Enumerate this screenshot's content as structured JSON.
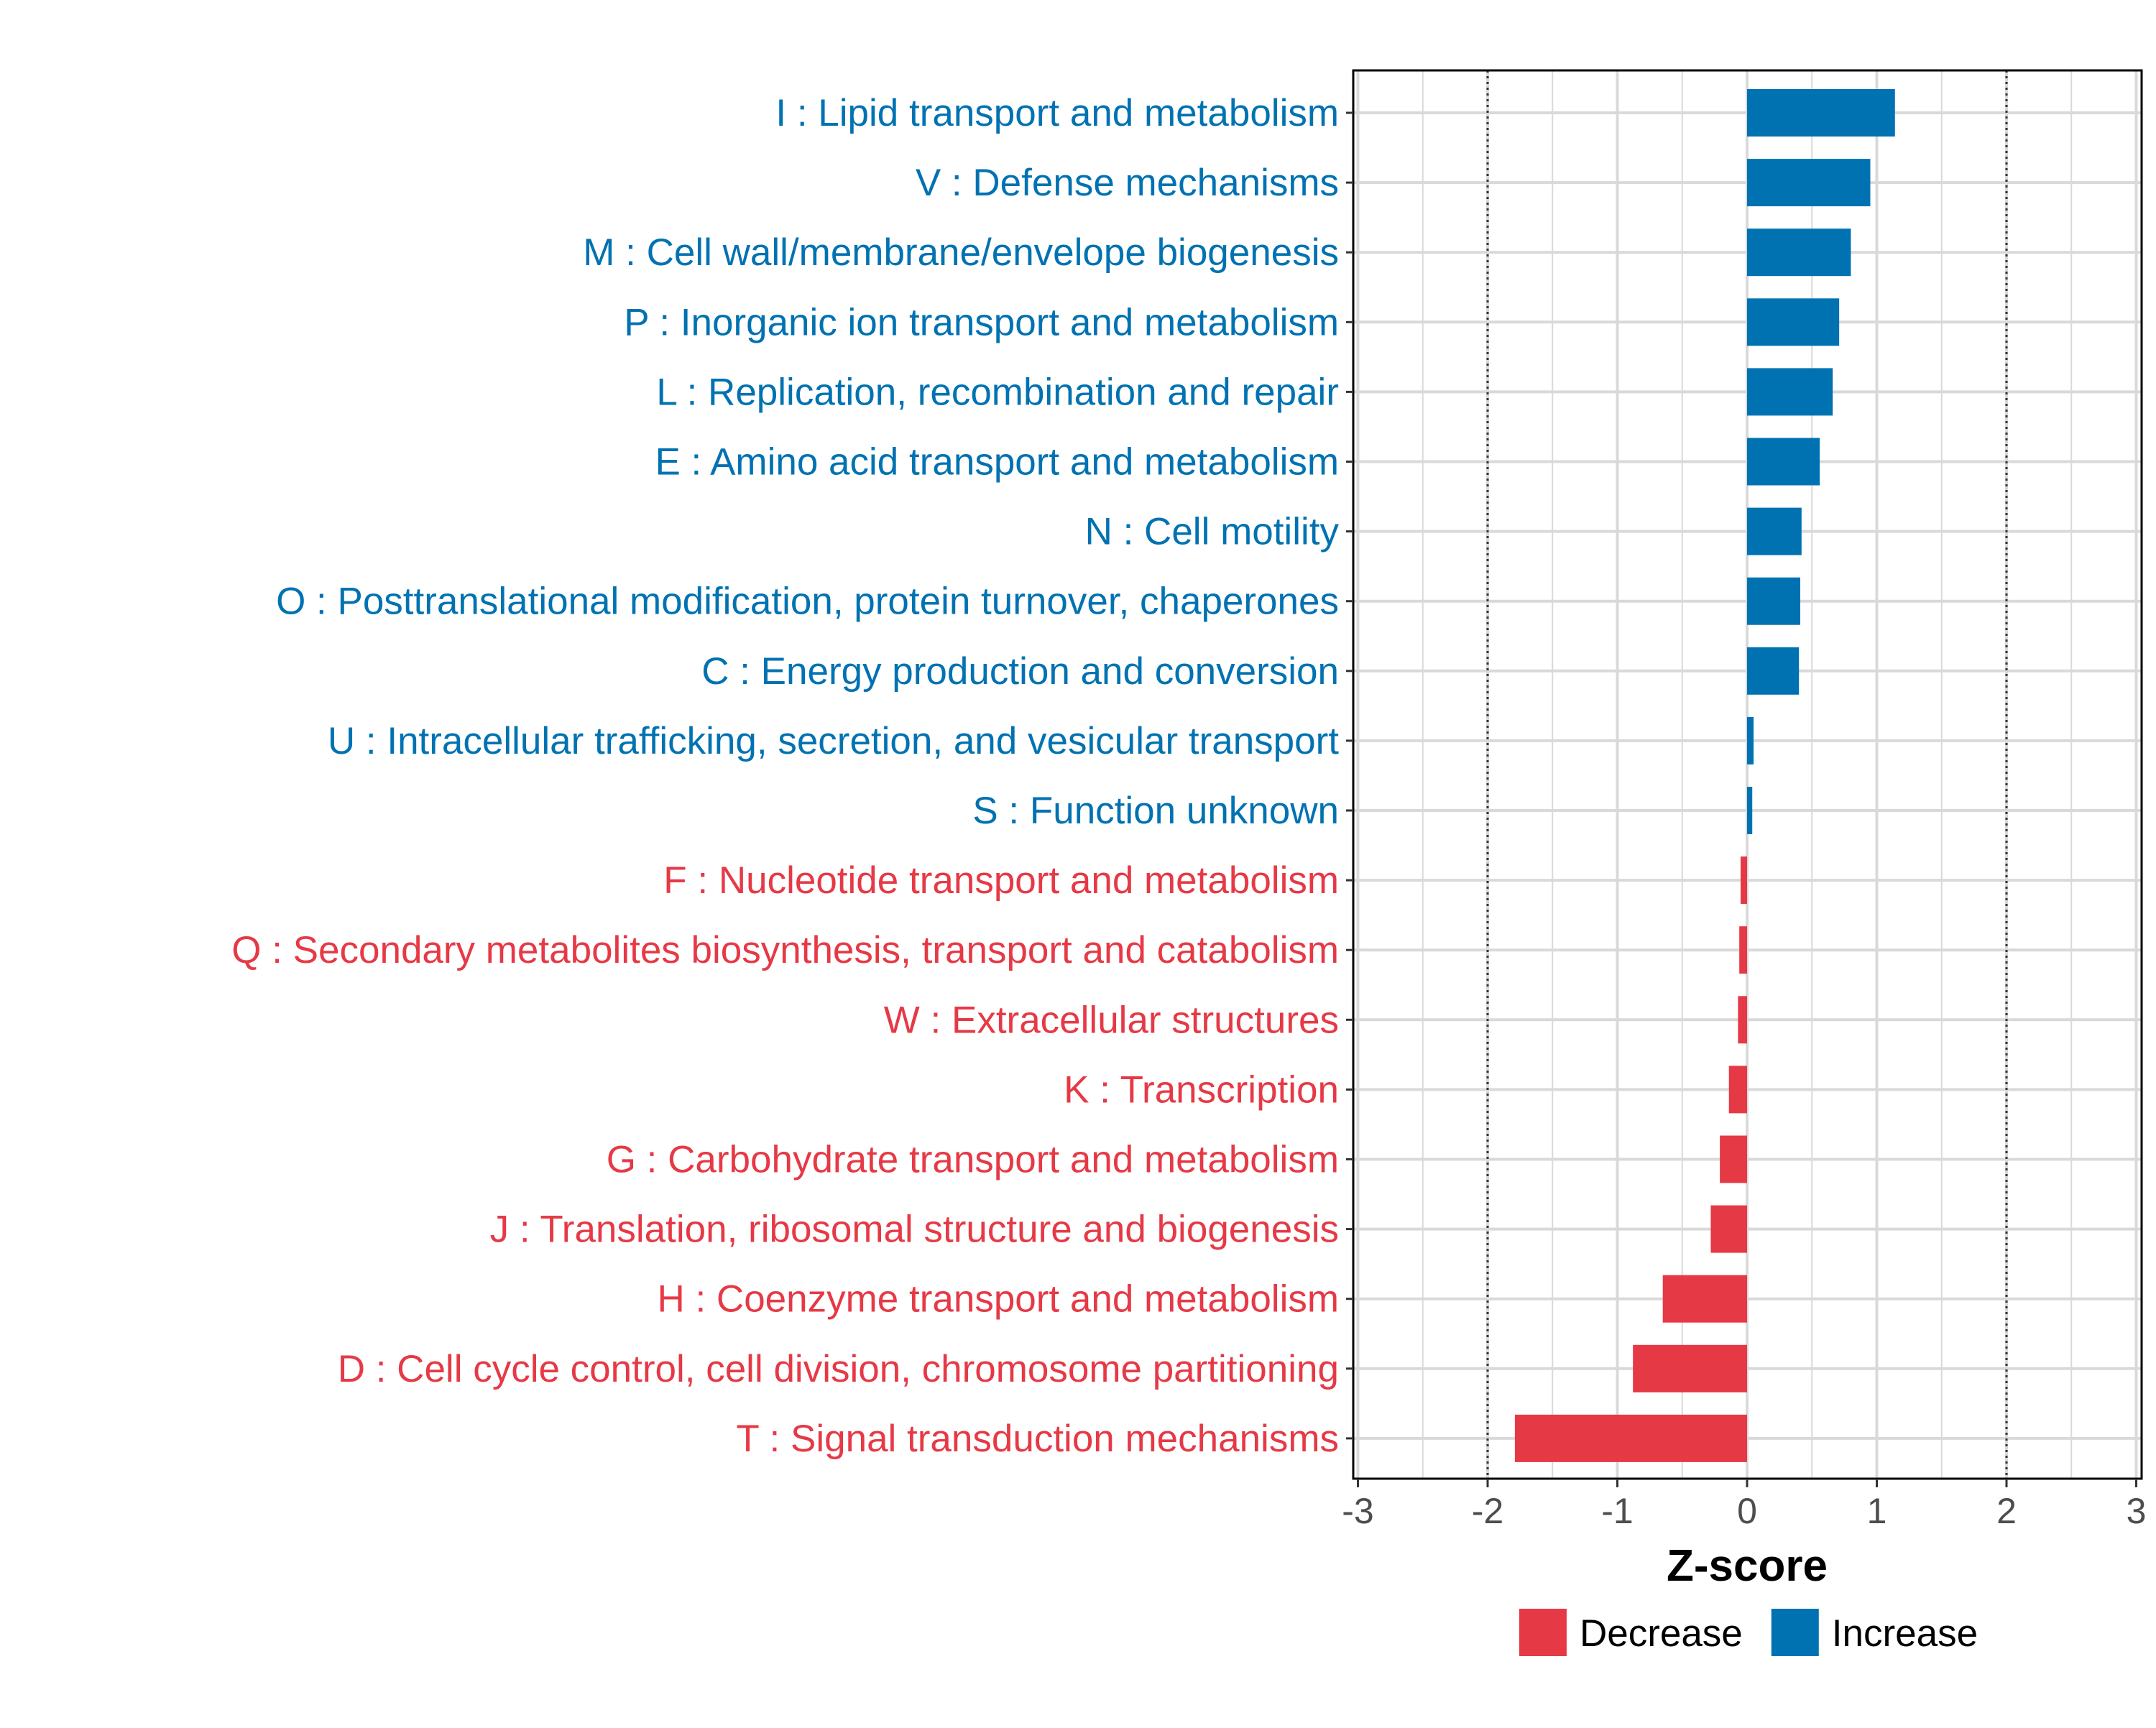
{
  "chart_data": {
    "type": "bar",
    "orientation": "horizontal",
    "xlabel": "Z-score",
    "xlim": [
      -3,
      3
    ],
    "x_ticks": [
      -3,
      -2,
      -1,
      0,
      1,
      2,
      3
    ],
    "x_tick_labels": [
      "-3",
      "-2",
      "-1",
      "0",
      "1",
      "2",
      "3"
    ],
    "threshold_lines": [
      -2,
      2
    ],
    "grid": true,
    "legend_position": "bottom",
    "colors": {
      "Increase": "#0072B2",
      "Decrease": "#E63946"
    },
    "legend": [
      {
        "name": "Decrease",
        "color": "#E63946"
      },
      {
        "name": "Increase",
        "color": "#0072B2"
      }
    ],
    "categories": [
      {
        "label": "I : Lipid transport and metabolism",
        "value": 1.14,
        "direction": "Increase"
      },
      {
        "label": "V : Defense mechanisms",
        "value": 0.95,
        "direction": "Increase"
      },
      {
        "label": "M : Cell wall/membrane/envelope biogenesis",
        "value": 0.8,
        "direction": "Increase"
      },
      {
        "label": "P : Inorganic ion transport and metabolism",
        "value": 0.71,
        "direction": "Increase"
      },
      {
        "label": "L : Replication, recombination and repair",
        "value": 0.66,
        "direction": "Increase"
      },
      {
        "label": "E : Amino acid transport and metabolism",
        "value": 0.56,
        "direction": "Increase"
      },
      {
        "label": "N : Cell motility",
        "value": 0.42,
        "direction": "Increase"
      },
      {
        "label": "O : Posttranslational modification, protein turnover, chaperones",
        "value": 0.41,
        "direction": "Increase"
      },
      {
        "label": "C : Energy production and conversion",
        "value": 0.4,
        "direction": "Increase"
      },
      {
        "label": "U : Intracellular trafficking, secretion, and vesicular transport",
        "value": 0.05,
        "direction": "Increase"
      },
      {
        "label": "S : Function unknown",
        "value": 0.04,
        "direction": "Increase"
      },
      {
        "label": "F : Nucleotide transport and metabolism",
        "value": -0.05,
        "direction": "Decrease"
      },
      {
        "label": "Q : Secondary metabolites biosynthesis, transport and catabolism",
        "value": -0.06,
        "direction": "Decrease"
      },
      {
        "label": "W : Extracellular structures",
        "value": -0.07,
        "direction": "Decrease"
      },
      {
        "label": "K : Transcription",
        "value": -0.14,
        "direction": "Decrease"
      },
      {
        "label": "G : Carbohydrate transport and metabolism",
        "value": -0.21,
        "direction": "Decrease"
      },
      {
        "label": "J : Translation, ribosomal structure and biogenesis",
        "value": -0.28,
        "direction": "Decrease"
      },
      {
        "label": "H : Coenzyme transport and metabolism",
        "value": -0.65,
        "direction": "Decrease"
      },
      {
        "label": "D : Cell cycle control, cell division, chromosome partitioning",
        "value": -0.88,
        "direction": "Decrease"
      },
      {
        "label": "T : Signal transduction mechanisms",
        "value": -1.79,
        "direction": "Decrease"
      }
    ]
  }
}
